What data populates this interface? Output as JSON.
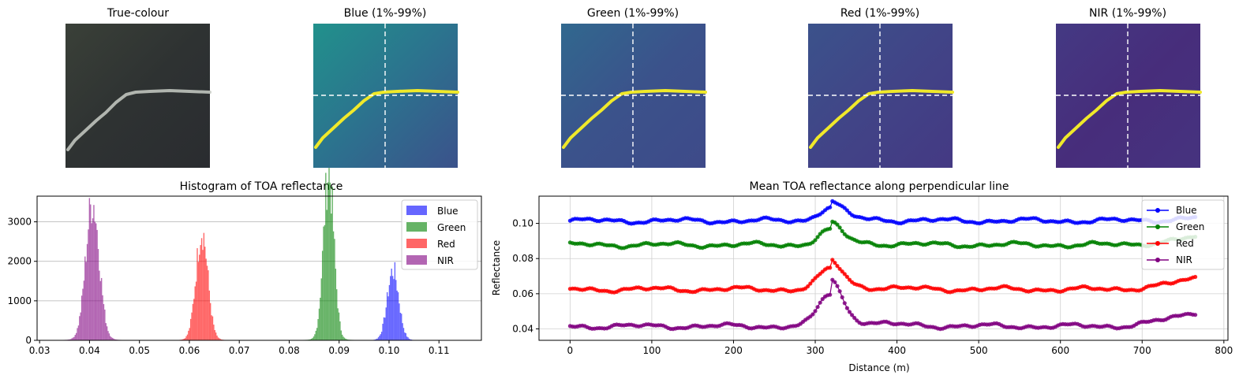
{
  "panels": {
    "true_colour": {
      "title": "True-colour"
    },
    "blue": {
      "title": "Blue (1%-99%)"
    },
    "green": {
      "title": "Green (1%-99%)"
    },
    "red": {
      "title": "Red (1%-99%)"
    },
    "nir": {
      "title": "NIR (1%-99%)"
    }
  },
  "chart_data": [
    {
      "type": "bar",
      "subtype": "histogram",
      "title": "Histogram of TOA reflectance",
      "xlabel": "",
      "ylabel": "",
      "xlim": [
        0.0295,
        0.1185
      ],
      "ylim": [
        0,
        3650
      ],
      "xticks": [
        "0.03",
        "0.04",
        "0.05",
        "0.06",
        "0.07",
        "0.08",
        "0.09",
        "0.10",
        "0.11"
      ],
      "yticks": [
        "0",
        "1000",
        "2000",
        "3000"
      ],
      "grid": "y",
      "legend": "top-right",
      "series": [
        {
          "name": "Blue",
          "color": "#0000ff",
          "center": 0.1007,
          "sigma": 0.00115,
          "peak": 1750
        },
        {
          "name": "Green",
          "color": "#008000",
          "center": 0.0878,
          "sigma": 0.00105,
          "peak": 4200
        },
        {
          "name": "Red",
          "color": "#ff0000",
          "center": 0.0624,
          "sigma": 0.00118,
          "peak": 2750
        },
        {
          "name": "NIR",
          "color": "#800080",
          "center": 0.0405,
          "sigma": 0.00135,
          "peak": 3470
        }
      ]
    },
    {
      "type": "line",
      "title": "Mean TOA reflectance along perpendicular line",
      "xlabel": "Distance (m)",
      "ylabel": "Reflectance",
      "xlim": [
        -38,
        805
      ],
      "ylim": [
        0.0335,
        0.1155
      ],
      "xticks": [
        "0",
        "100",
        "200",
        "300",
        "400",
        "500",
        "600",
        "700",
        "800"
      ],
      "yticks": [
        "0.04",
        "0.06",
        "0.08",
        "0.10"
      ],
      "grid": "both",
      "legend": "top-right",
      "x_range": [
        0,
        765
      ],
      "series": [
        {
          "name": "Blue",
          "color": "#0000ff",
          "base": 0.1015,
          "peak_at": 318,
          "peak": 0.11,
          "end": 0.103
        },
        {
          "name": "Green",
          "color": "#008000",
          "base": 0.0878,
          "peak_at": 318,
          "peak": 0.097,
          "end": 0.092
        },
        {
          "name": "Red",
          "color": "#ff0000",
          "base": 0.0625,
          "peak_at": 318,
          "peak": 0.075,
          "end": 0.0685
        },
        {
          "name": "NIR",
          "color": "#800080",
          "base": 0.0415,
          "peak_at": 318,
          "peak": 0.062,
          "end": 0.0495
        }
      ]
    }
  ]
}
